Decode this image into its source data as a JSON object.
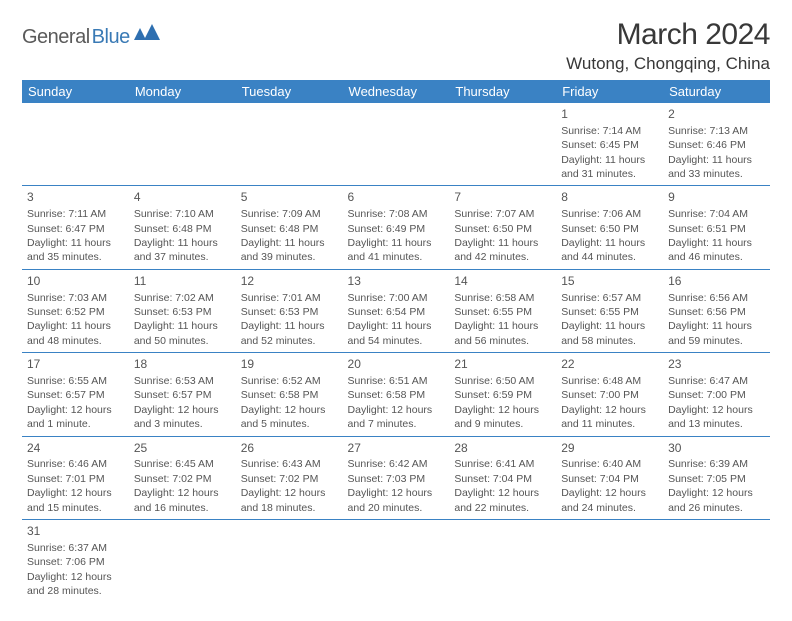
{
  "logo": {
    "part1": "General",
    "part2": "Blue"
  },
  "title": "March 2024",
  "location": "Wutong, Chongqing, China",
  "colors": {
    "header_bg": "#3a82c4",
    "header_text": "#ffffff",
    "border": "#3a82c4",
    "text": "#4a4a4a",
    "title_text": "#383838",
    "logo_gray": "#5a5a5a",
    "logo_blue": "#3a7ab5"
  },
  "day_headers": [
    "Sunday",
    "Monday",
    "Tuesday",
    "Wednesday",
    "Thursday",
    "Friday",
    "Saturday"
  ],
  "weeks": [
    [
      null,
      null,
      null,
      null,
      null,
      {
        "n": "1",
        "sr": "7:14 AM",
        "ss": "6:45 PM",
        "dl": "11 hours and 31 minutes."
      },
      {
        "n": "2",
        "sr": "7:13 AM",
        "ss": "6:46 PM",
        "dl": "11 hours and 33 minutes."
      }
    ],
    [
      {
        "n": "3",
        "sr": "7:11 AM",
        "ss": "6:47 PM",
        "dl": "11 hours and 35 minutes."
      },
      {
        "n": "4",
        "sr": "7:10 AM",
        "ss": "6:48 PM",
        "dl": "11 hours and 37 minutes."
      },
      {
        "n": "5",
        "sr": "7:09 AM",
        "ss": "6:48 PM",
        "dl": "11 hours and 39 minutes."
      },
      {
        "n": "6",
        "sr": "7:08 AM",
        "ss": "6:49 PM",
        "dl": "11 hours and 41 minutes."
      },
      {
        "n": "7",
        "sr": "7:07 AM",
        "ss": "6:50 PM",
        "dl": "11 hours and 42 minutes."
      },
      {
        "n": "8",
        "sr": "7:06 AM",
        "ss": "6:50 PM",
        "dl": "11 hours and 44 minutes."
      },
      {
        "n": "9",
        "sr": "7:04 AM",
        "ss": "6:51 PM",
        "dl": "11 hours and 46 minutes."
      }
    ],
    [
      {
        "n": "10",
        "sr": "7:03 AM",
        "ss": "6:52 PM",
        "dl": "11 hours and 48 minutes."
      },
      {
        "n": "11",
        "sr": "7:02 AM",
        "ss": "6:53 PM",
        "dl": "11 hours and 50 minutes."
      },
      {
        "n": "12",
        "sr": "7:01 AM",
        "ss": "6:53 PM",
        "dl": "11 hours and 52 minutes."
      },
      {
        "n": "13",
        "sr": "7:00 AM",
        "ss": "6:54 PM",
        "dl": "11 hours and 54 minutes."
      },
      {
        "n": "14",
        "sr": "6:58 AM",
        "ss": "6:55 PM",
        "dl": "11 hours and 56 minutes."
      },
      {
        "n": "15",
        "sr": "6:57 AM",
        "ss": "6:55 PM",
        "dl": "11 hours and 58 minutes."
      },
      {
        "n": "16",
        "sr": "6:56 AM",
        "ss": "6:56 PM",
        "dl": "11 hours and 59 minutes."
      }
    ],
    [
      {
        "n": "17",
        "sr": "6:55 AM",
        "ss": "6:57 PM",
        "dl": "12 hours and 1 minute."
      },
      {
        "n": "18",
        "sr": "6:53 AM",
        "ss": "6:57 PM",
        "dl": "12 hours and 3 minutes."
      },
      {
        "n": "19",
        "sr": "6:52 AM",
        "ss": "6:58 PM",
        "dl": "12 hours and 5 minutes."
      },
      {
        "n": "20",
        "sr": "6:51 AM",
        "ss": "6:58 PM",
        "dl": "12 hours and 7 minutes."
      },
      {
        "n": "21",
        "sr": "6:50 AM",
        "ss": "6:59 PM",
        "dl": "12 hours and 9 minutes."
      },
      {
        "n": "22",
        "sr": "6:48 AM",
        "ss": "7:00 PM",
        "dl": "12 hours and 11 minutes."
      },
      {
        "n": "23",
        "sr": "6:47 AM",
        "ss": "7:00 PM",
        "dl": "12 hours and 13 minutes."
      }
    ],
    [
      {
        "n": "24",
        "sr": "6:46 AM",
        "ss": "7:01 PM",
        "dl": "12 hours and 15 minutes."
      },
      {
        "n": "25",
        "sr": "6:45 AM",
        "ss": "7:02 PM",
        "dl": "12 hours and 16 minutes."
      },
      {
        "n": "26",
        "sr": "6:43 AM",
        "ss": "7:02 PM",
        "dl": "12 hours and 18 minutes."
      },
      {
        "n": "27",
        "sr": "6:42 AM",
        "ss": "7:03 PM",
        "dl": "12 hours and 20 minutes."
      },
      {
        "n": "28",
        "sr": "6:41 AM",
        "ss": "7:04 PM",
        "dl": "12 hours and 22 minutes."
      },
      {
        "n": "29",
        "sr": "6:40 AM",
        "ss": "7:04 PM",
        "dl": "12 hours and 24 minutes."
      },
      {
        "n": "30",
        "sr": "6:39 AM",
        "ss": "7:05 PM",
        "dl": "12 hours and 26 minutes."
      }
    ],
    [
      {
        "n": "31",
        "sr": "6:37 AM",
        "ss": "7:06 PM",
        "dl": "12 hours and 28 minutes."
      },
      null,
      null,
      null,
      null,
      null,
      null
    ]
  ],
  "labels": {
    "sunrise": "Sunrise: ",
    "sunset": "Sunset: ",
    "daylight": "Daylight: "
  }
}
